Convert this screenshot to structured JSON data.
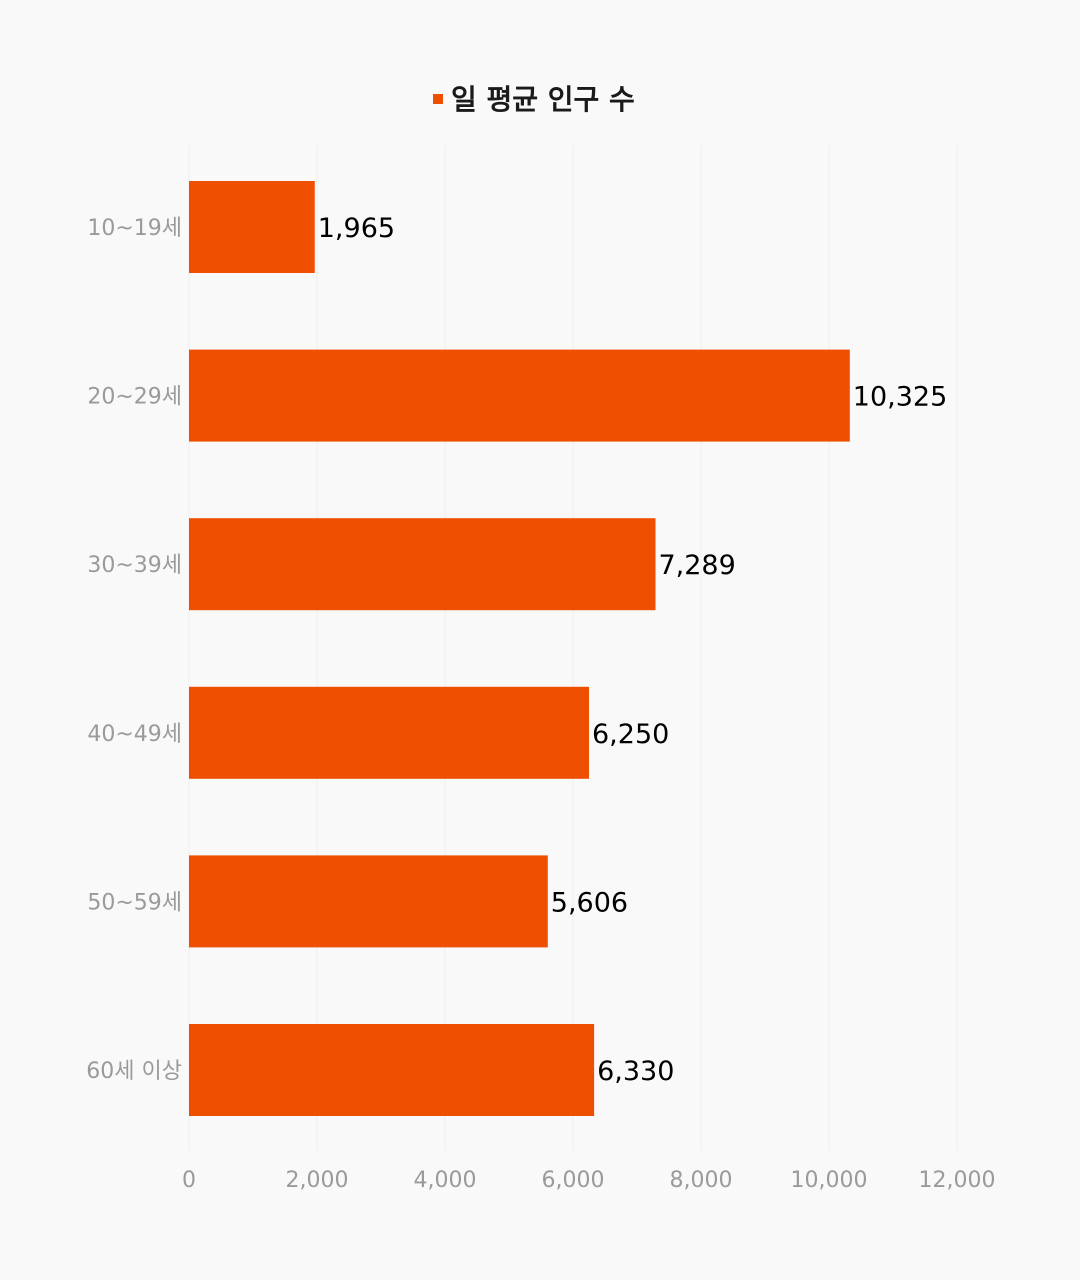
{
  "chart_data": {
    "type": "bar",
    "orientation": "horizontal",
    "categories": [
      "10~19세",
      "20~29세",
      "30~39세",
      "40~49세",
      "50~59세",
      "60세 이상"
    ],
    "series": [
      {
        "name": "일 평균 인구 수",
        "values": [
          1965,
          10325,
          7289,
          6250,
          5606,
          6330
        ],
        "value_labels": [
          "1,965",
          "10,325",
          "7,289",
          "6,250",
          "5,606",
          "6,330"
        ],
        "color": "#ee4f00"
      }
    ],
    "xlim": [
      0,
      12000
    ],
    "x_ticks": [
      0,
      2000,
      4000,
      6000,
      8000,
      10000,
      12000
    ],
    "x_tick_labels": [
      "0",
      "2,000",
      "4,000",
      "6,000",
      "8,000",
      "10,000",
      "12,000"
    ],
    "title": "",
    "xlabel": "",
    "ylabel": "",
    "legend_position": "top-center",
    "grid": true,
    "background": "#f9f9f9"
  }
}
